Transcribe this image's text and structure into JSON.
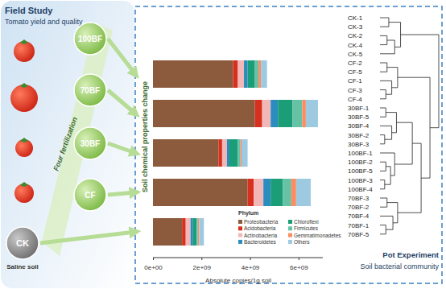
{
  "field_study": {
    "title": "Field Study",
    "subtitle": "Tomato yield and quality",
    "side_label": "Four fertilization",
    "treatments": [
      "100BF",
      "70BF",
      "30BF",
      "CF"
    ],
    "control": {
      "label": "CK",
      "description": "Saline soil"
    }
  },
  "middle_label": "Soil chemical properties change",
  "chart_data": {
    "type": "bar",
    "orientation": "horizontal",
    "stacked": true,
    "tick_labels": "x",
    "categories": [
      "100BF",
      "70BF",
      "30BF",
      "CF",
      "CK"
    ],
    "x_label": "Absolute copies/1g soil",
    "xlim": [
      0,
      7000000000
    ],
    "xticks": [
      {
        "value": 0,
        "label": "0e+00"
      },
      {
        "value": 2000000000,
        "label": "2e+09"
      },
      {
        "value": 4000000000,
        "label": "4e+09"
      },
      {
        "value": 6000000000,
        "label": "6e+09"
      }
    ],
    "legend_title": "Phylum",
    "legend": "bottom-right",
    "series": [
      {
        "name": "Proteobacteria",
        "color": "#8c5a3c",
        "values": [
          3300000000,
          4200000000,
          2700000000,
          3900000000,
          1200000000
        ]
      },
      {
        "name": "Acidobacteria",
        "color": "#d7301f",
        "values": [
          200000000,
          300000000,
          150000000,
          250000000,
          150000000
        ]
      },
      {
        "name": "Actinobacteria",
        "color": "#f2b8b8",
        "values": [
          250000000,
          350000000,
          200000000,
          400000000,
          200000000
        ]
      },
      {
        "name": "Bacteroidetes",
        "color": "#2b8cbe",
        "values": [
          150000000,
          300000000,
          100000000,
          300000000,
          100000000
        ]
      },
      {
        "name": "Chloroflexi",
        "color": "#1b9e77",
        "values": [
          300000000,
          600000000,
          350000000,
          500000000,
          150000000
        ]
      },
      {
        "name": "Firmicutes",
        "color": "#66c2a5",
        "values": [
          150000000,
          400000000,
          100000000,
          350000000,
          50000000
        ]
      },
      {
        "name": "Gemmatimonadetes",
        "color": "#fc8d62",
        "values": [
          100000000,
          150000000,
          50000000,
          200000000,
          50000000
        ]
      },
      {
        "name": "Others",
        "color": "#9ecae1",
        "values": [
          250000000,
          500000000,
          250000000,
          600000000,
          200000000
        ]
      }
    ]
  },
  "pot_experiment": {
    "title": "Pot Experiment",
    "subtitle": "Soil bacterial community",
    "dendrogram": {
      "height": 1,
      "children": [
        {
          "height": 0.35,
          "children": [
            {
              "height": 0.15,
              "children": [
                "CK-1",
                "CK-3"
              ]
            },
            {
              "height": 0.25,
              "children": [
                {
                  "height": 0.12,
                  "children": [
                    "CK-2",
                    "CK-4"
                  ]
                },
                "CK-5"
              ]
            }
          ]
        },
        {
          "height": 0.85,
          "children": [
            {
              "height": 0.3,
              "children": [
                {
                  "height": 0.12,
                  "children": [
                    "CF-2",
                    "CF-5"
                  ]
                },
                {
                  "height": 0.2,
                  "children": [
                    "CF-1",
                    {
                      "height": 0.1,
                      "children": [
                        "CF-3",
                        "CF-4"
                      ]
                    }
                  ]
                }
              ]
            },
            {
              "height": 0.7,
              "children": [
                {
                  "height": 0.55,
                  "children": [
                    {
                      "height": 0.28,
                      "children": [
                        {
                          "height": 0.1,
                          "children": [
                            "30BF-1",
                            "30BF-5"
                          ]
                        },
                        {
                          "height": 0.2,
                          "children": [
                            "30BF-4",
                            {
                              "height": 0.08,
                              "children": [
                                "30BF-2",
                                "30BF-3"
                              ]
                            }
                          ]
                        }
                      ]
                    },
                    {
                      "height": 0.25,
                      "children": [
                        "100BF-1",
                        {
                          "height": 0.18,
                          "children": [
                            {
                              "height": 0.1,
                              "children": [
                                "100BF-2",
                                "100BF-5"
                              ]
                            },
                            {
                              "height": 0.08,
                              "children": [
                                "100BF-3",
                                "100BF-4"
                              ]
                            }
                          ]
                        }
                      ]
                    }
                  ]
                },
                {
                  "height": 0.3,
                  "children": [
                    {
                      "height": 0.12,
                      "children": [
                        "70BF-3",
                        "70BF-2"
                      ]
                    },
                    {
                      "height": 0.22,
                      "children": [
                        "70BF-4",
                        {
                          "height": 0.1,
                          "children": [
                            "70BF-1",
                            "70BF-5"
                          ]
                        }
                      ]
                    }
                  ]
                }
              ]
            }
          ]
        }
      ]
    }
  }
}
